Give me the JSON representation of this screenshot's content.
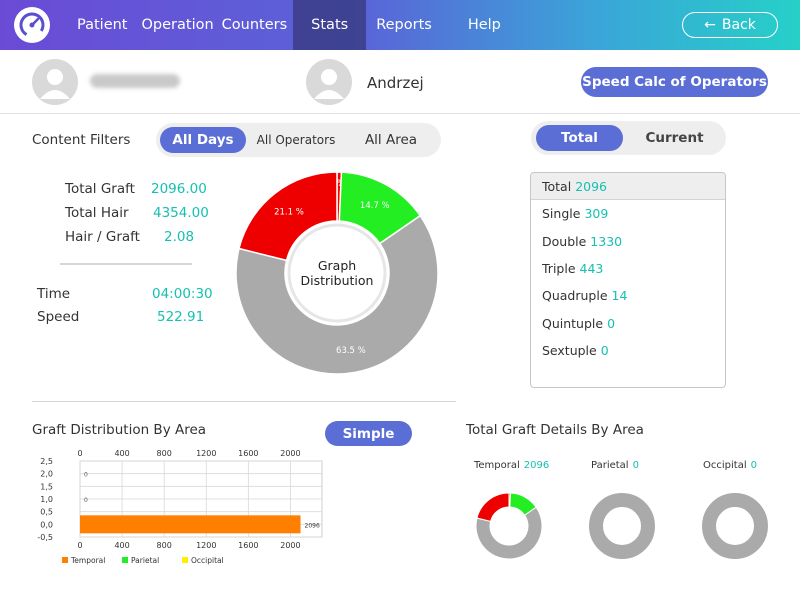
{
  "nav": {
    "items": [
      "Patient",
      "Operation",
      "Counters",
      "Stats",
      "Reports",
      "Help"
    ],
    "active": "Stats",
    "back_label": "Back"
  },
  "users": {
    "operator_name": "Andrzej",
    "speed_button": "Speed Calc of Operators"
  },
  "filters": {
    "label": "Content Filters",
    "options": [
      "All Days",
      "All Operators",
      "All Area"
    ],
    "active": "All Days"
  },
  "stats": {
    "total_graft_label": "Total Graft",
    "total_graft_value": "2096.00",
    "total_hair_label": "Total Hair",
    "total_hair_value": "4354.00",
    "hair_per_graft_label": "Hair / Graft",
    "hair_per_graft_value": "2.08",
    "time_label": "Time",
    "time_value": "04:00:30",
    "speed_label": "Speed",
    "speed_value": "522.91"
  },
  "distribution": {
    "center_line1": "Graph",
    "center_line2": "Distribution",
    "slices": [
      {
        "label": "0.7 %",
        "value": 0.7,
        "color": "#ff0000"
      },
      {
        "label": "14.7 %",
        "value": 14.7,
        "color": "#22ee22"
      },
      {
        "label": "63.5 %",
        "value": 63.5,
        "color": "#aaaaaa"
      },
      {
        "label": "21.1 %",
        "value": 21.1,
        "color": "#ee0000"
      }
    ]
  },
  "counts": {
    "toggle": [
      "Total",
      "Current"
    ],
    "active_toggle": "Total",
    "rows": [
      {
        "label": "Total",
        "value": "2096"
      },
      {
        "label": "Single",
        "value": "309"
      },
      {
        "label": "Double",
        "value": "1330"
      },
      {
        "label": "Triple",
        "value": "443"
      },
      {
        "label": "Quadruple",
        "value": "14"
      },
      {
        "label": "Quintuple",
        "value": "0"
      },
      {
        "label": "Sextuple",
        "value": "0"
      }
    ]
  },
  "graft_area": {
    "title": "Graft Distribution By Area",
    "simple_button": "Simple"
  },
  "chart_data": {
    "type": "bar",
    "orientation": "horizontal",
    "x_ticks": [
      "0",
      "400",
      "800",
      "1200",
      "1600",
      "2000"
    ],
    "y_ticks": [
      "2,5",
      "2,0",
      "1,5",
      "1,0",
      "0,5",
      "0,0",
      "-0,5"
    ],
    "xlim": [
      0,
      2300
    ],
    "ylim": [
      -0.5,
      2.5
    ],
    "series": [
      {
        "name": "Temporal",
        "value": 2096,
        "label": "2096",
        "color": "#ff8000",
        "y": 0
      },
      {
        "name": "Parietal",
        "value": 0,
        "label": "0",
        "color": "#22ee22",
        "y": 2
      },
      {
        "name": "Occipital",
        "value": 0,
        "label": "0",
        "color": "#ffee00",
        "y": 1
      }
    ],
    "legend": "bottom",
    "grid": true
  },
  "area_details": {
    "title": "Total Graft Details By Area",
    "areas": [
      {
        "label": "Temporal",
        "value": "2096"
      },
      {
        "label": "Parietal",
        "value": "0"
      },
      {
        "label": "Occipital",
        "value": "0"
      }
    ]
  },
  "colors": {
    "accent": "#5b6ed6",
    "value_teal": "#16c0b0",
    "header_start": "#6a4bd6",
    "header_end": "#26d0c8"
  }
}
